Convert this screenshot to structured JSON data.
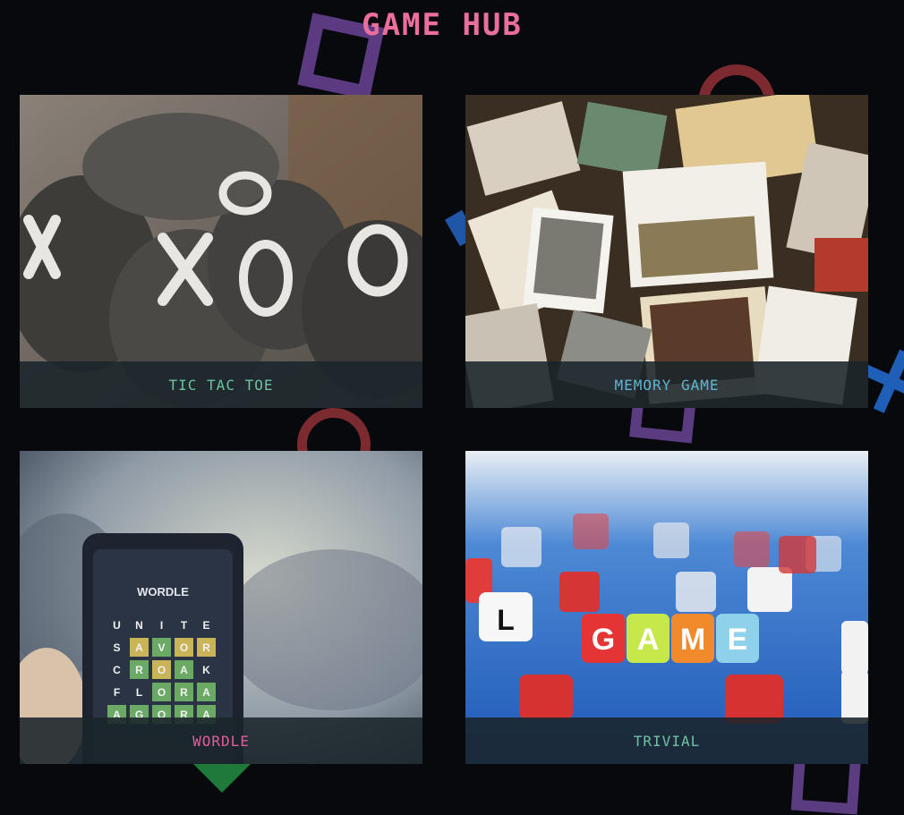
{
  "header": {
    "title": "GAME HUB"
  },
  "colors": {
    "background": "#07090c",
    "title": "#ec6e9e",
    "caption_bg": "#1a242a"
  },
  "cards": [
    {
      "label": "TIC TAC TOE",
      "label_color": "#6fc1a0",
      "image_icon": "bean-bags-xo-photo"
    },
    {
      "label": "MEMORY GAME",
      "label_color": "#5fb6d2",
      "image_icon": "scattered-photos-photo"
    },
    {
      "label": "WORDLE",
      "label_color": "#e15f9a",
      "image_icon": "phone-wordle-photo"
    },
    {
      "label": "TRIVIAL",
      "label_color": "#6fc1a0",
      "image_icon": "letter-dice-photo"
    }
  ],
  "wordle_screen": {
    "heading": "WORDLE",
    "rows": [
      "UNITE",
      "SAVOR",
      "CROAK",
      "FLORA",
      "AGORA"
    ]
  },
  "trivial_dice": {
    "word": "GAME"
  }
}
